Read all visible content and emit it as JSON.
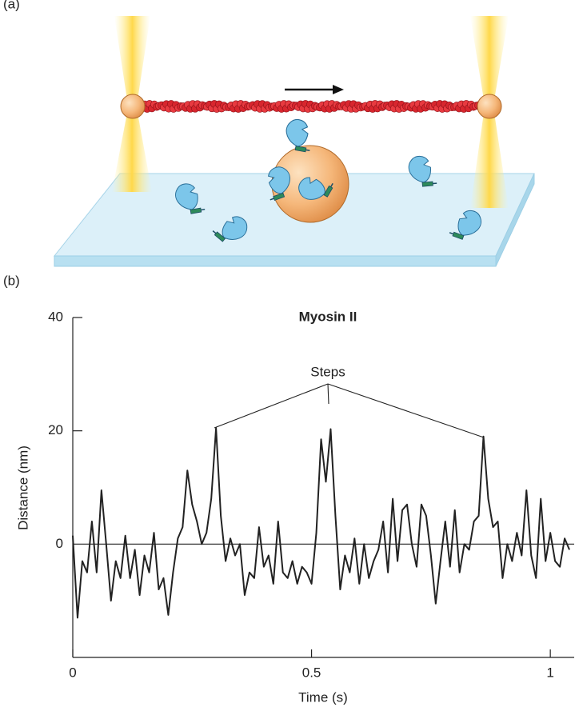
{
  "panel_labels": {
    "a": "(a)",
    "b": "(b)"
  },
  "chart_data": {
    "type": "line",
    "title": "Myosin II",
    "xlabel": "Time (s)",
    "ylabel": "Distance (nm)",
    "annotation": "Steps",
    "xlim": [
      0,
      1.05
    ],
    "ylim": [
      -20,
      40
    ],
    "xticks": [
      0,
      0.5,
      1
    ],
    "yticks": [
      0,
      20,
      40
    ],
    "color": "#222222",
    "x": [
      0,
      0.01,
      0.02,
      0.03,
      0.04,
      0.05,
      0.06,
      0.07,
      0.08,
      0.09,
      0.1,
      0.11,
      0.12,
      0.13,
      0.14,
      0.15,
      0.16,
      0.17,
      0.18,
      0.19,
      0.2,
      0.21,
      0.22,
      0.23,
      0.24,
      0.25,
      0.26,
      0.27,
      0.28,
      0.29,
      0.3,
      0.31,
      0.32,
      0.33,
      0.34,
      0.35,
      0.36,
      0.37,
      0.38,
      0.39,
      0.4,
      0.41,
      0.42,
      0.43,
      0.44,
      0.45,
      0.46,
      0.47,
      0.48,
      0.49,
      0.5,
      0.51,
      0.52,
      0.53,
      0.54,
      0.55,
      0.56,
      0.57,
      0.58,
      0.59,
      0.6,
      0.61,
      0.62,
      0.63,
      0.64,
      0.65,
      0.66,
      0.67,
      0.68,
      0.69,
      0.7,
      0.71,
      0.72,
      0.73,
      0.74,
      0.75,
      0.76,
      0.77,
      0.78,
      0.79,
      0.8,
      0.81,
      0.82,
      0.83,
      0.84,
      0.85,
      0.86,
      0.87,
      0.88,
      0.89,
      0.9,
      0.91,
      0.92,
      0.93,
      0.94,
      0.95,
      0.96,
      0.97,
      0.98,
      0.99,
      1,
      1.01,
      1.02,
      1.03,
      1.04
    ],
    "values": [
      1.5,
      -13,
      -3,
      -5,
      4,
      -5,
      9.5,
      0,
      -10,
      -3,
      -6,
      1.5,
      -6,
      -1,
      -9,
      -2,
      -5,
      2,
      -8,
      -6,
      -12.5,
      -5,
      1,
      3,
      13,
      7,
      4,
      0,
      2,
      8,
      20.5,
      5,
      -3,
      1,
      -2,
      0,
      -9,
      -5,
      -6,
      3,
      -4,
      -2,
      -7,
      4,
      -5,
      -6,
      -3,
      -7,
      -4,
      -5,
      -7,
      2,
      18.5,
      11,
      20.3,
      5,
      -8,
      -2,
      -5,
      1,
      -7,
      0,
      -6,
      -3,
      -1,
      4,
      -5,
      8,
      -3,
      6,
      7,
      0,
      -4,
      7,
      5,
      -2,
      -10.5,
      -3,
      4,
      -4,
      6,
      -5,
      0,
      -1,
      4,
      5,
      19,
      8,
      3,
      4,
      -6,
      0,
      -3,
      2,
      -2,
      9.5,
      -2,
      -6,
      8,
      -3,
      2,
      -3,
      -4,
      1,
      -1
    ]
  }
}
